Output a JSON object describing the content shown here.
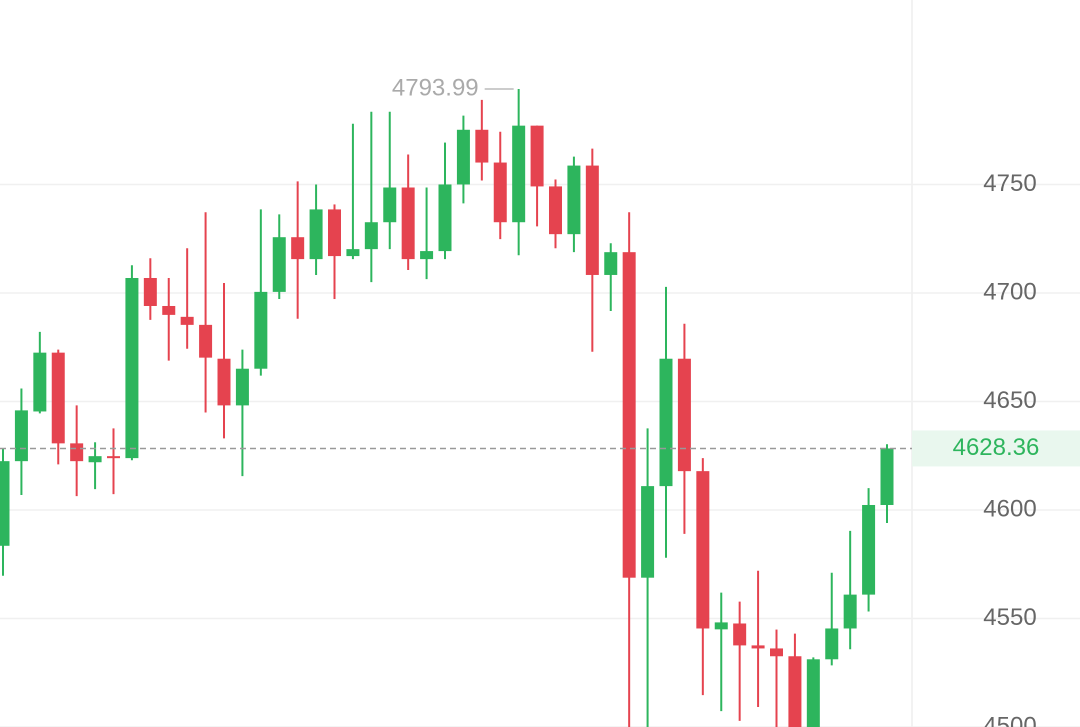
{
  "chart_data": {
    "type": "candlestick",
    "open": [
      4583.5,
      4622.5,
      4645.4,
      4672.5,
      4630.7,
      4622,
      4624.8,
      4623.9,
      4706.9,
      4694,
      4689,
      4685.3,
      4669.7,
      4648.2,
      4665.1,
      4700.5,
      4725.7,
      4715.6,
      4738.5,
      4717,
      4720.2,
      4732.6,
      4748.6,
      4715.6,
      4719.3,
      4750,
      4775.2,
      4760.1,
      4732.6,
      4777.1,
      4749.1,
      4727.1,
      4758.7,
      4708.3,
      4718.8,
      4568.8,
      4611,
      4669.7,
      4617.9,
      4545,
      4547.7,
      4537.6,
      4536.2,
      4532.6,
      4498,
      4531.2,
      4545.4,
      4561,
      4602.3
    ],
    "high": [
      4628.4,
      4656,
      4682.1,
      4673.9,
      4648.2,
      4631.2,
      4637.6,
      4712.8,
      4716,
      4706.9,
      4720.6,
      4737.2,
      4704.6,
      4673.9,
      4738.5,
      4736.2,
      4751.4,
      4750,
      4740.8,
      4778,
      4783.5,
      4783.5,
      4763.8,
      4748.6,
      4769.3,
      4781.7,
      4789,
      4774.3,
      4793.99,
      4777.1,
      4752.3,
      4762.8,
      4766.5,
      4722.9,
      4737.2,
      4637.6,
      4702.8,
      4685.8,
      4623.9,
      4561.9,
      4557.8,
      4572,
      4544.9,
      4543,
      4532.1,
      4571.1,
      4590.4,
      4610.1,
      4630.3
    ],
    "low": [
      4569.7,
      4606.9,
      4644.5,
      4621,
      4606.4,
      4609.6,
      4607.3,
      4622.9,
      4687.6,
      4668.8,
      4674.3,
      4644.9,
      4633,
      4615.6,
      4661.9,
      4697.2,
      4688.1,
      4708.3,
      4697.2,
      4715.6,
      4705,
      4720.2,
      4710.6,
      4706.4,
      4715.6,
      4741.3,
      4751.8,
      4724.8,
      4717.4,
      4730.7,
      4720.6,
      4718.8,
      4672.9,
      4691.7,
      4495,
      4495,
      4578,
      4589,
      4514.7,
      4507.3,
      4502.8,
      4509.2,
      4500,
      4495,
      4495,
      4528.4,
      4535.8,
      4553.2,
      4594
    ],
    "close": [
      4622.5,
      4645.9,
      4672.5,
      4630.7,
      4622.5,
      4624.8,
      4623.9,
      4706.9,
      4694,
      4689.9,
      4685.3,
      4670.2,
      4648.2,
      4665.1,
      4700.5,
      4725.7,
      4715.6,
      4738.5,
      4717,
      4720.2,
      4732.6,
      4748.6,
      4715.6,
      4719.3,
      4750,
      4775.2,
      4760.1,
      4732.6,
      4777.1,
      4749.1,
      4727.1,
      4758.7,
      4708.3,
      4718.8,
      4568.8,
      4611,
      4669.7,
      4617.9,
      4545.4,
      4548.2,
      4537.6,
      4536.2,
      4532.6,
      4498,
      4531.2,
      4545.4,
      4561,
      4602.3,
      4628.36
    ],
    "up_color": "#2db55d",
    "down_color": "#e5434f",
    "ylim": [
      4500,
      4835
    ],
    "yticks": [
      4500,
      4550,
      4600,
      4650,
      4700,
      4750
    ],
    "grid": true
  }
}
